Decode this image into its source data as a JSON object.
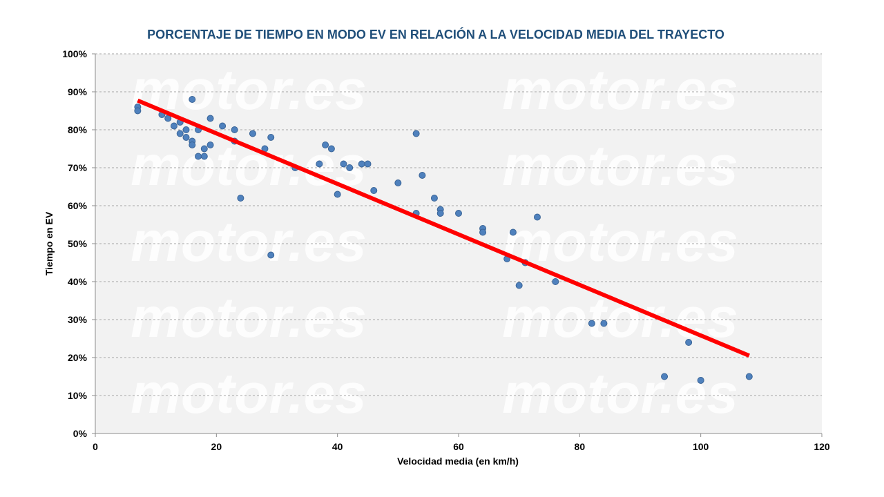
{
  "colors": {
    "title": "#1F4E79",
    "plot_background": "#F2F2F2",
    "grid": "#A6A6A6",
    "points": "#4F81BD",
    "points_stroke": "#3A6496",
    "trendline": "#FF0000"
  },
  "watermark": {
    "text": "motor.es"
  },
  "chart_data": {
    "type": "scatter",
    "title": "PORCENTAJE DE TIEMPO EN MODO EV EN RELACIÓN A LA VELOCIDAD MEDIA DEL TRAYECTO",
    "xlabel": "Velocidad media (en km/h)",
    "ylabel": "Tiempo en EV",
    "xlim": [
      0,
      120
    ],
    "ylim": [
      0,
      100
    ],
    "x_ticks": [
      0,
      20,
      40,
      60,
      80,
      100,
      120
    ],
    "y_ticks": [
      0,
      10,
      20,
      30,
      40,
      50,
      60,
      70,
      80,
      90,
      100
    ],
    "x_tick_labels": [
      "0",
      "20",
      "40",
      "60",
      "80",
      "100",
      "120"
    ],
    "y_tick_labels": [
      "0%",
      "10%",
      "20%",
      "30%",
      "40%",
      "50%",
      "60%",
      "70%",
      "80%",
      "90%",
      "100%"
    ],
    "grid": "horizontal-dashed",
    "points": [
      {
        "x": 7,
        "y": 86
      },
      {
        "x": 7,
        "y": 85
      },
      {
        "x": 11,
        "y": 84
      },
      {
        "x": 12,
        "y": 83
      },
      {
        "x": 13,
        "y": 81
      },
      {
        "x": 14,
        "y": 82
      },
      {
        "x": 14,
        "y": 79
      },
      {
        "x": 15,
        "y": 80
      },
      {
        "x": 15,
        "y": 78
      },
      {
        "x": 16,
        "y": 88
      },
      {
        "x": 16,
        "y": 77
      },
      {
        "x": 16,
        "y": 76
      },
      {
        "x": 17,
        "y": 80
      },
      {
        "x": 17,
        "y": 73
      },
      {
        "x": 18,
        "y": 75
      },
      {
        "x": 18,
        "y": 73
      },
      {
        "x": 19,
        "y": 83
      },
      {
        "x": 19,
        "y": 76
      },
      {
        "x": 21,
        "y": 81
      },
      {
        "x": 23,
        "y": 80
      },
      {
        "x": 23,
        "y": 77
      },
      {
        "x": 24,
        "y": 62
      },
      {
        "x": 26,
        "y": 79
      },
      {
        "x": 28,
        "y": 75
      },
      {
        "x": 29,
        "y": 78
      },
      {
        "x": 29,
        "y": 47
      },
      {
        "x": 33,
        "y": 70
      },
      {
        "x": 37,
        "y": 71
      },
      {
        "x": 38,
        "y": 76
      },
      {
        "x": 39,
        "y": 75
      },
      {
        "x": 40,
        "y": 63
      },
      {
        "x": 41,
        "y": 71
      },
      {
        "x": 42,
        "y": 70
      },
      {
        "x": 44,
        "y": 71
      },
      {
        "x": 45,
        "y": 71
      },
      {
        "x": 46,
        "y": 64
      },
      {
        "x": 50,
        "y": 66
      },
      {
        "x": 53,
        "y": 79
      },
      {
        "x": 53,
        "y": 58
      },
      {
        "x": 54,
        "y": 68
      },
      {
        "x": 56,
        "y": 62
      },
      {
        "x": 57,
        "y": 59
      },
      {
        "x": 57,
        "y": 58
      },
      {
        "x": 60,
        "y": 58
      },
      {
        "x": 64,
        "y": 54
      },
      {
        "x": 64,
        "y": 53
      },
      {
        "x": 68,
        "y": 46
      },
      {
        "x": 69,
        "y": 53
      },
      {
        "x": 70,
        "y": 39
      },
      {
        "x": 71,
        "y": 45
      },
      {
        "x": 73,
        "y": 57
      },
      {
        "x": 76,
        "y": 40
      },
      {
        "x": 82,
        "y": 29
      },
      {
        "x": 84,
        "y": 29
      },
      {
        "x": 94,
        "y": 15
      },
      {
        "x": 98,
        "y": 24
      },
      {
        "x": 100,
        "y": 14
      },
      {
        "x": 108,
        "y": 15
      }
    ],
    "trendline": {
      "type": "linear",
      "start": {
        "x": 7,
        "y": 87.7
      },
      "end": {
        "x": 108,
        "y": 20.5
      }
    }
  }
}
